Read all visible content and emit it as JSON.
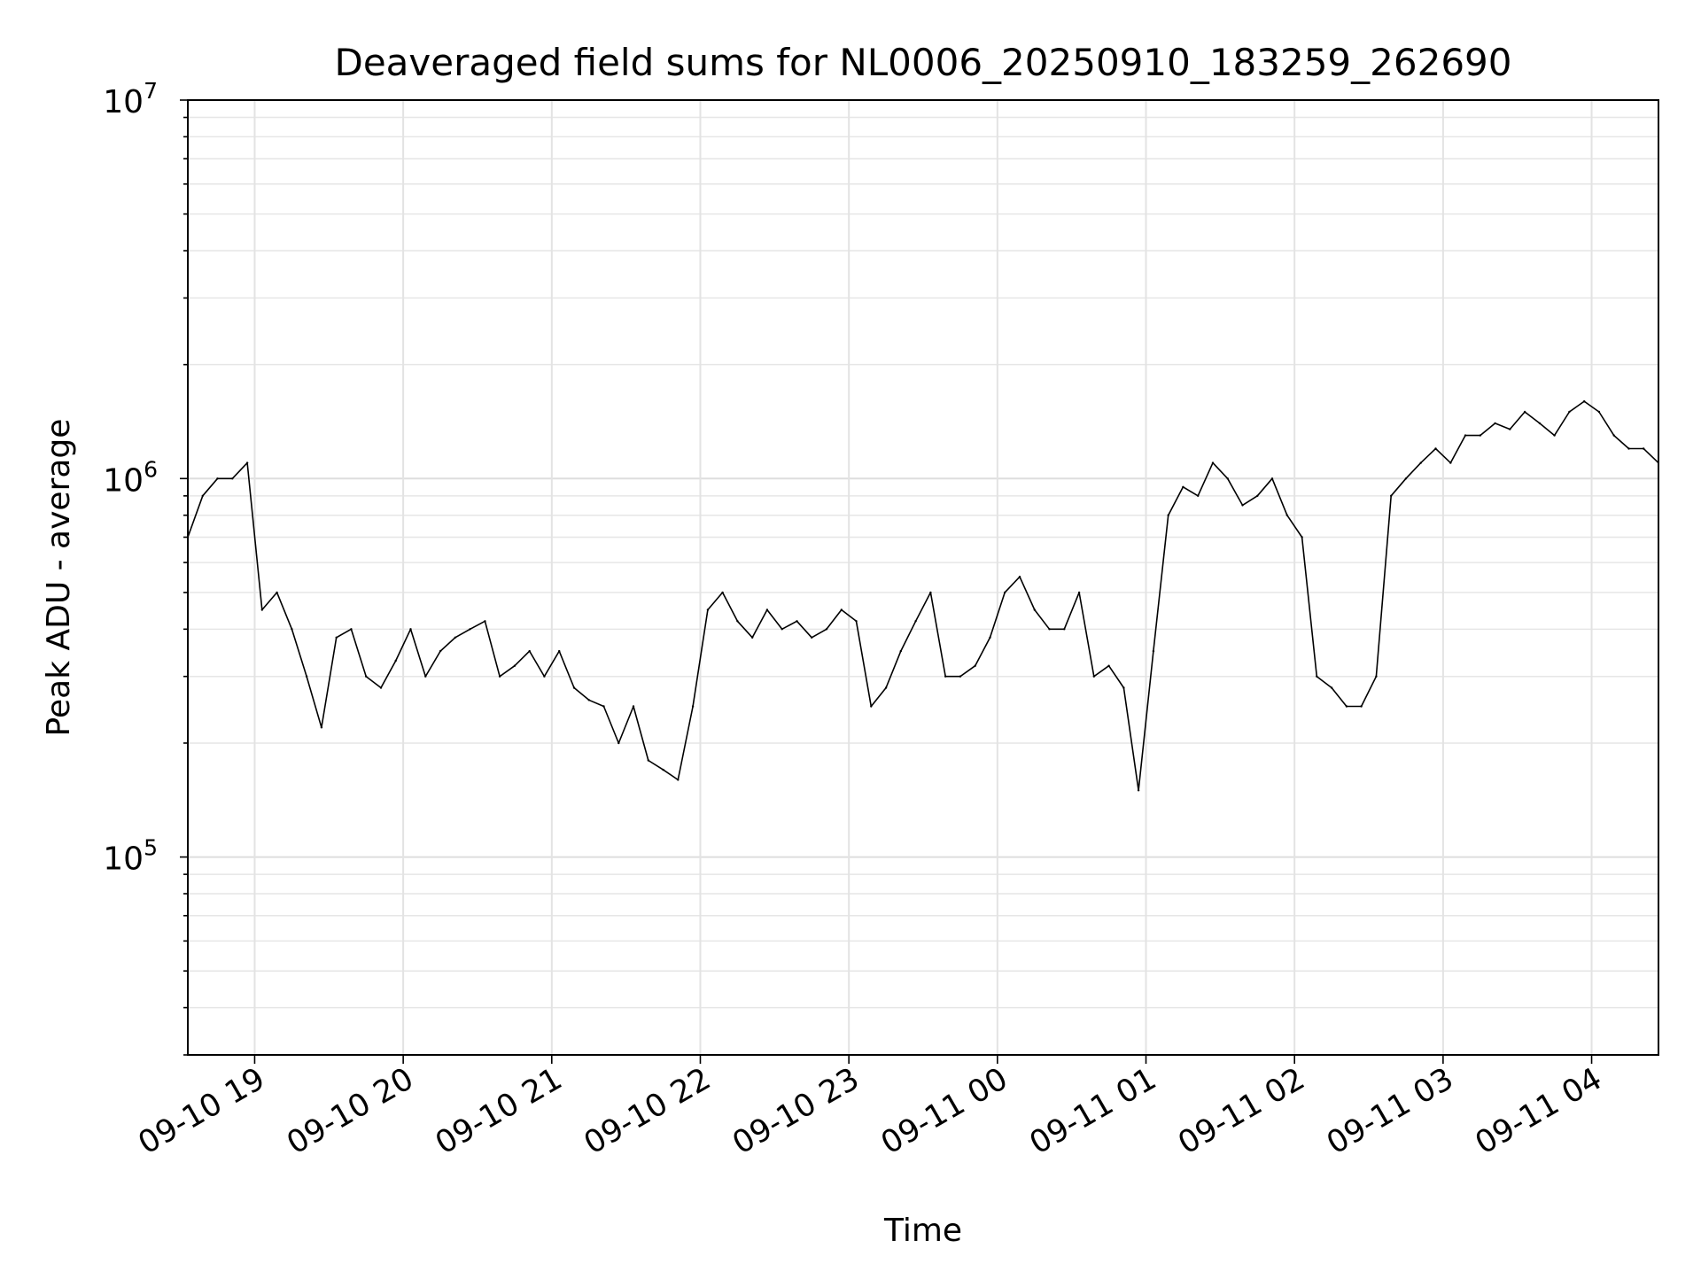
{
  "chart_data": {
    "type": "line",
    "title": "Deaveraged field sums for NL0006_20250910_183259_262690",
    "xlabel": "Time",
    "ylabel": "Peak ADU - average",
    "xlim": [
      "2025-09-10T18:33:00",
      "2025-09-11T04:27:00"
    ],
    "ylim": [
      30000,
      10000000
    ],
    "yscale": "log",
    "y_ticks": [
      {
        "value": 100000,
        "base": "10",
        "exp": "5"
      },
      {
        "value": 1000000,
        "base": "10",
        "exp": "6"
      },
      {
        "value": 10000000,
        "base": "10",
        "exp": "7"
      }
    ],
    "x_ticks": [
      {
        "value": "2025-09-10T19:00:00",
        "label": "09-10 19"
      },
      {
        "value": "2025-09-10T20:00:00",
        "label": "09-10 20"
      },
      {
        "value": "2025-09-10T21:00:00",
        "label": "09-10 21"
      },
      {
        "value": "2025-09-10T22:00:00",
        "label": "09-10 22"
      },
      {
        "value": "2025-09-10T23:00:00",
        "label": "09-10 23"
      },
      {
        "value": "2025-09-11T00:00:00",
        "label": "09-11 00"
      },
      {
        "value": "2025-09-11T01:00:00",
        "label": "09-11 01"
      },
      {
        "value": "2025-09-11T02:00:00",
        "label": "09-11 02"
      },
      {
        "value": "2025-09-11T03:00:00",
        "label": "09-11 03"
      },
      {
        "value": "2025-09-11T04:00:00",
        "label": "09-11 04"
      }
    ],
    "grid": true,
    "line_color": "#000000",
    "series": [
      {
        "x": [
          "2025-09-10T18:33:00",
          "2025-09-10T18:39:00",
          "2025-09-10T18:45:00",
          "2025-09-10T18:51:00",
          "2025-09-10T18:57:00",
          "2025-09-10T19:03:00",
          "2025-09-10T19:09:00",
          "2025-09-10T19:15:00",
          "2025-09-10T19:21:00",
          "2025-09-10T19:27:00",
          "2025-09-10T19:33:00",
          "2025-09-10T19:39:00",
          "2025-09-10T19:45:00",
          "2025-09-10T19:51:00",
          "2025-09-10T19:57:00",
          "2025-09-10T20:03:00",
          "2025-09-10T20:09:00",
          "2025-09-10T20:15:00",
          "2025-09-10T20:21:00",
          "2025-09-10T20:27:00",
          "2025-09-10T20:33:00",
          "2025-09-10T20:39:00",
          "2025-09-10T20:45:00",
          "2025-09-10T20:51:00",
          "2025-09-10T20:57:00",
          "2025-09-10T21:03:00",
          "2025-09-10T21:09:00",
          "2025-09-10T21:15:00",
          "2025-09-10T21:21:00",
          "2025-09-10T21:27:00",
          "2025-09-10T21:33:00",
          "2025-09-10T21:39:00",
          "2025-09-10T21:45:00",
          "2025-09-10T21:51:00",
          "2025-09-10T21:57:00",
          "2025-09-10T22:03:00",
          "2025-09-10T22:09:00",
          "2025-09-10T22:15:00",
          "2025-09-10T22:21:00",
          "2025-09-10T22:27:00",
          "2025-09-10T22:33:00",
          "2025-09-10T22:39:00",
          "2025-09-10T22:45:00",
          "2025-09-10T22:51:00",
          "2025-09-10T22:57:00",
          "2025-09-10T23:03:00",
          "2025-09-10T23:09:00",
          "2025-09-10T23:15:00",
          "2025-09-10T23:21:00",
          "2025-09-10T23:27:00",
          "2025-09-10T23:33:00",
          "2025-09-10T23:39:00",
          "2025-09-10T23:45:00",
          "2025-09-10T23:51:00",
          "2025-09-10T23:57:00",
          "2025-09-11T00:03:00",
          "2025-09-11T00:09:00",
          "2025-09-11T00:15:00",
          "2025-09-11T00:21:00",
          "2025-09-11T00:27:00",
          "2025-09-11T00:33:00",
          "2025-09-11T00:39:00",
          "2025-09-11T00:45:00",
          "2025-09-11T00:51:00",
          "2025-09-11T00:57:00",
          "2025-09-11T01:03:00",
          "2025-09-11T01:09:00",
          "2025-09-11T01:15:00",
          "2025-09-11T01:21:00",
          "2025-09-11T01:27:00",
          "2025-09-11T01:33:00",
          "2025-09-11T01:39:00",
          "2025-09-11T01:45:00",
          "2025-09-11T01:51:00",
          "2025-09-11T01:57:00",
          "2025-09-11T02:03:00",
          "2025-09-11T02:09:00",
          "2025-09-11T02:15:00",
          "2025-09-11T02:21:00",
          "2025-09-11T02:27:00",
          "2025-09-11T02:33:00",
          "2025-09-11T02:39:00",
          "2025-09-11T02:45:00",
          "2025-09-11T02:51:00",
          "2025-09-11T02:57:00",
          "2025-09-11T03:03:00",
          "2025-09-11T03:09:00",
          "2025-09-11T03:15:00",
          "2025-09-11T03:21:00",
          "2025-09-11T03:27:00",
          "2025-09-11T03:33:00",
          "2025-09-11T03:39:00",
          "2025-09-11T03:45:00",
          "2025-09-11T03:51:00",
          "2025-09-11T03:57:00",
          "2025-09-11T04:03:00",
          "2025-09-11T04:09:00",
          "2025-09-11T04:15:00",
          "2025-09-11T04:21:00",
          "2025-09-11T04:27:00"
        ],
        "y": [
          700000,
          900000,
          1000000,
          1000000,
          1100000,
          450000,
          500000,
          400000,
          300000,
          220000,
          380000,
          400000,
          300000,
          280000,
          330000,
          400000,
          300000,
          350000,
          380000,
          400000,
          420000,
          300000,
          320000,
          350000,
          300000,
          350000,
          280000,
          260000,
          250000,
          200000,
          250000,
          180000,
          170000,
          160000,
          250000,
          450000,
          500000,
          420000,
          380000,
          450000,
          400000,
          420000,
          380000,
          400000,
          450000,
          420000,
          250000,
          280000,
          350000,
          420000,
          500000,
          300000,
          300000,
          320000,
          380000,
          500000,
          550000,
          450000,
          400000,
          400000,
          500000,
          300000,
          320000,
          280000,
          150000,
          350000,
          800000,
          950000,
          900000,
          1100000,
          1000000,
          850000,
          900000,
          1000000,
          800000,
          700000,
          300000,
          280000,
          250000,
          250000,
          300000,
          900000,
          1000000,
          1100000,
          1200000,
          1100000,
          1300000,
          1300000,
          1400000,
          1350000,
          1500000,
          1400000,
          1300000,
          1500000,
          1600000,
          1500000,
          1300000,
          1200000,
          1200000,
          1100000
        ]
      }
    ]
  }
}
